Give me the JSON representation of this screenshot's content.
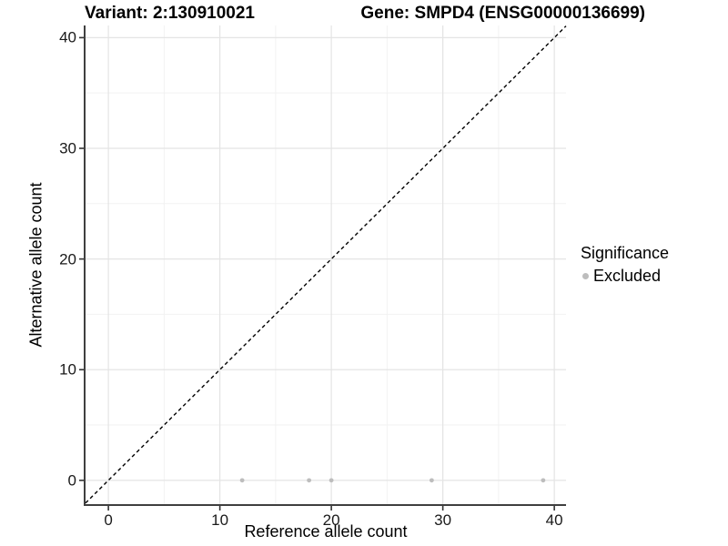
{
  "chart_data": {
    "type": "scatter",
    "title_left": "Variant: 2:130910021",
    "title_right": "Gene: SMPD4 (ENSG00000136699)",
    "xlabel": "Reference allele count",
    "ylabel": "Alternative allele count",
    "x_ticks": [
      0,
      10,
      20,
      30,
      40
    ],
    "y_ticks": [
      0,
      10,
      20,
      30,
      40
    ],
    "x_minor_ticks": [
      5,
      15,
      25,
      35
    ],
    "y_minor_ticks": [
      5,
      15,
      25,
      35
    ],
    "xlim": [
      -2.05,
      41.05
    ],
    "ylim": [
      -2.15,
      41.1
    ],
    "grid": true,
    "series": [
      {
        "name": "Excluded",
        "color": "#bdbdbd",
        "points": [
          [
            12,
            0
          ],
          [
            18,
            0
          ],
          [
            20,
            0
          ],
          [
            29,
            0
          ],
          [
            39,
            0
          ]
        ]
      }
    ],
    "reference_line": {
      "equation": "y = x",
      "style": "dashed",
      "color": "#000000"
    },
    "legend": {
      "title": "Significance",
      "position": "right",
      "items": [
        {
          "label": "Excluded",
          "color": "#bdbdbd"
        }
      ]
    }
  },
  "colors": {
    "background": "#ffffff",
    "grid_major": "#e4e4e4",
    "grid_minor": "#f2f2f2",
    "axis_line": "#3f3f3f",
    "tick_mark": "#333333",
    "text": "#000000",
    "point": "#bdbdbd"
  }
}
